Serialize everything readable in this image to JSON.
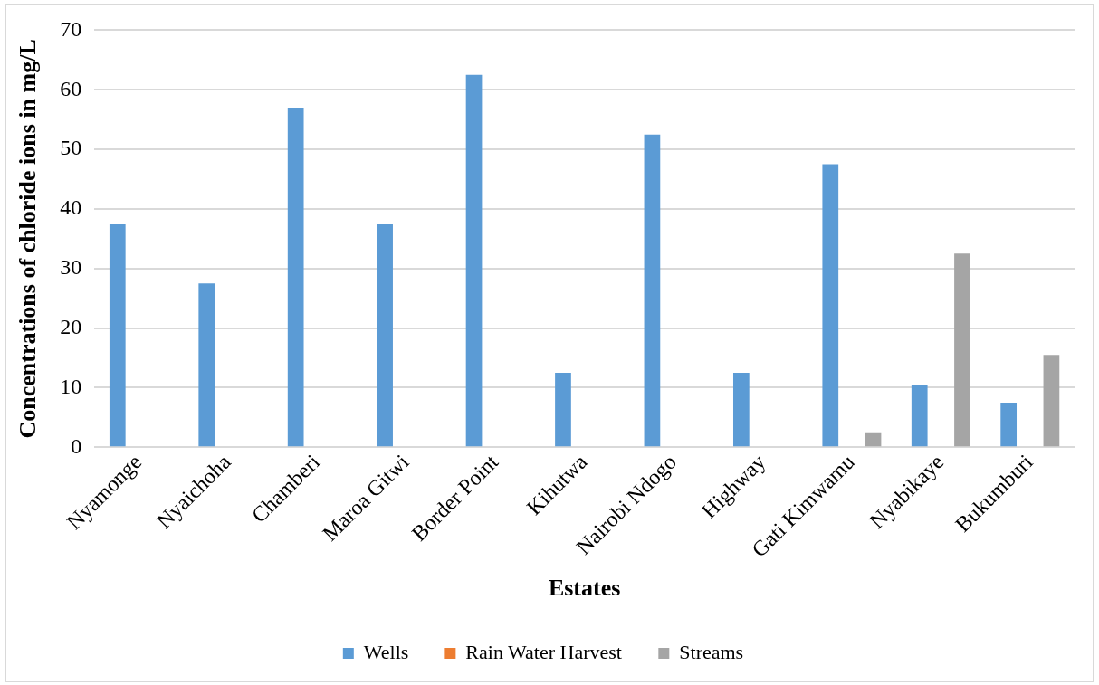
{
  "chart_data": {
    "type": "bar",
    "xlabel": "Estates",
    "ylabel": "Concentrations of chloride ions in mg/L",
    "categories": [
      "Nyamonge",
      "Nyaichoha",
      "Chamberi",
      "Maroa Gitwi",
      "Border Point",
      "Kihutwa",
      "Nairobi Ndogo",
      "Highway",
      "Gati Kimwamu",
      "Nyabikaye",
      "Bukumburi"
    ],
    "series": [
      {
        "name": "Wells",
        "color": "#5b9bd5",
        "values": [
          37.5,
          27.5,
          57,
          37.5,
          62.5,
          12.5,
          52.5,
          12.5,
          47.5,
          10.5,
          7.5
        ]
      },
      {
        "name": "Rain Water Harvest",
        "color": "#ed7d31",
        "values": [
          null,
          null,
          null,
          null,
          null,
          null,
          null,
          null,
          null,
          null,
          null
        ]
      },
      {
        "name": "Streams",
        "color": "#a5a5a5",
        "values": [
          null,
          null,
          null,
          null,
          null,
          null,
          null,
          null,
          2.5,
          32.5,
          15.5
        ]
      }
    ],
    "ylim": [
      0,
      70
    ],
    "yticks": [
      0,
      10,
      20,
      30,
      40,
      50,
      60,
      70
    ],
    "grid": "y",
    "legend": "bottom"
  }
}
